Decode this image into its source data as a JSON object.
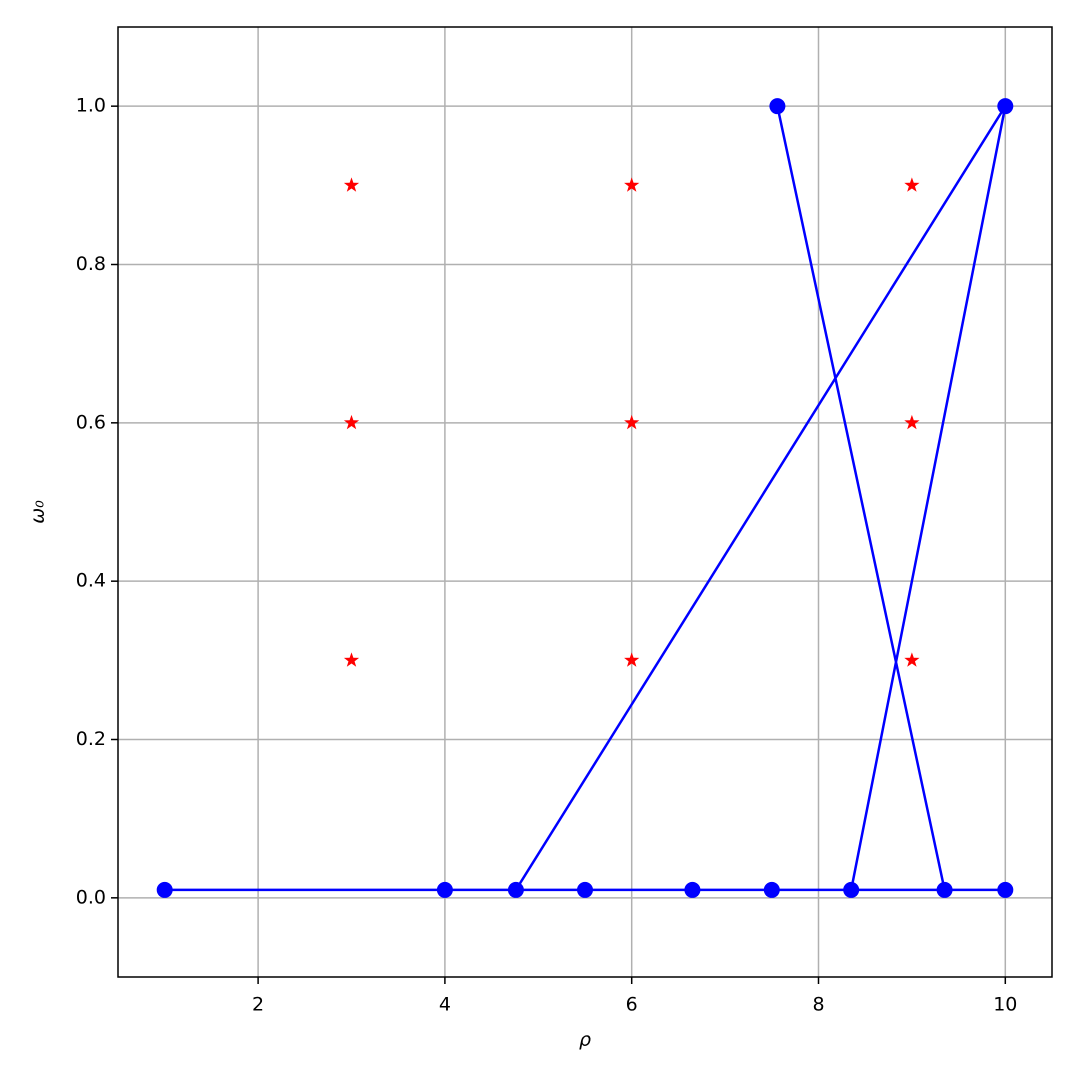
{
  "chart_data": {
    "type": "line",
    "x_label": "ρ",
    "y_label": "ω₀",
    "xlim": [
      0.5,
      10.5
    ],
    "ylim": [
      -0.1,
      1.1
    ],
    "xticks": [
      2,
      4,
      6,
      8,
      10
    ],
    "yticks": [
      {
        "value": 0,
        "label": "0.0"
      },
      {
        "value": 0.2,
        "label": "0.2"
      },
      {
        "value": 0.4,
        "label": "0.4"
      },
      {
        "value": 0.6,
        "label": "0.6"
      },
      {
        "value": 0.8,
        "label": "0.8"
      },
      {
        "value": 1,
        "label": "1.0"
      }
    ],
    "grid": true,
    "series": [
      {
        "type": "line",
        "color": "#0000ff",
        "x": [
          7.56,
          9.35,
          8.35,
          10,
          4.76,
          1,
          4,
          5.5,
          6.65,
          7.5,
          10
        ],
        "values": [
          1.0,
          0.01,
          0.01,
          1.0,
          0.01,
          0.01,
          0.01,
          0.01,
          0.01,
          0.01,
          0.01
        ]
      },
      {
        "type": "scatter",
        "color": "#ff0000",
        "x": [
          3,
          3,
          3,
          6,
          6,
          6,
          9,
          9,
          9
        ],
        "values": [
          0.9,
          0.6,
          0.3,
          0.9,
          0.6,
          0.3,
          0.9,
          0.6,
          0.3
        ]
      }
    ]
  }
}
